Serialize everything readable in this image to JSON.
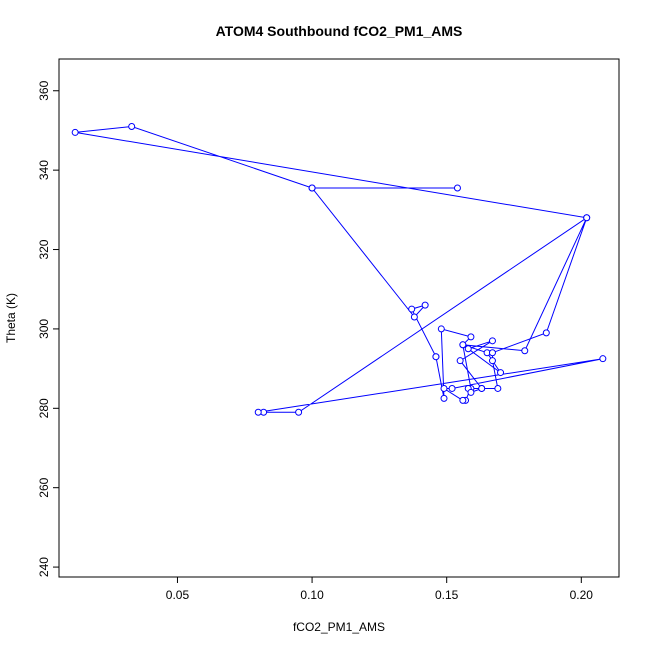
{
  "chart_data": {
    "type": "line",
    "title": "ATOM4 Southbound fCO2_PM1_AMS",
    "xlabel": "fCO2_PM1_AMS",
    "ylabel": "Theta (K)",
    "xlim": [
      0.006,
      0.214
    ],
    "ylim": [
      237.5,
      368
    ],
    "grid": false,
    "markers": "open-circle",
    "line_color": "#0000ff",
    "x_ticks": [
      0.05,
      0.1,
      0.15,
      0.2
    ],
    "x_tick_labels": [
      "0.05",
      "0.10",
      "0.15",
      "0.20"
    ],
    "y_ticks": [
      240,
      260,
      280,
      300,
      320,
      340,
      360
    ],
    "y_tick_labels": [
      "240",
      "260",
      "280",
      "300",
      "320",
      "340",
      "360"
    ],
    "series": [
      {
        "x": [
          0.157,
          0.159,
          0.156,
          0.165,
          0.17,
          0.158,
          0.167,
          0.155,
          0.163,
          0.158,
          0.159,
          0.163,
          0.169,
          0.167,
          0.167,
          0.187,
          0.202,
          0.179,
          0.156,
          0.159,
          0.148,
          0.149,
          0.146,
          0.146,
          0.137,
          0.142,
          0.138,
          0.1,
          0.154,
          0.1,
          0.033,
          0.012,
          0.202,
          0.095,
          0.082,
          0.08,
          0.208,
          0.152,
          0.149,
          0.156
        ],
        "y": [
          282,
          285,
          296,
          294,
          289,
          295,
          297,
          292,
          285,
          285,
          284,
          285,
          285,
          292,
          294,
          299,
          328,
          294.5,
          296,
          298,
          300,
          282.5,
          293,
          293,
          305,
          306,
          303,
          335.5,
          335.5,
          335.5,
          351,
          349.5,
          328,
          279,
          279,
          279,
          292.5,
          285,
          285,
          282
        ]
      }
    ]
  }
}
